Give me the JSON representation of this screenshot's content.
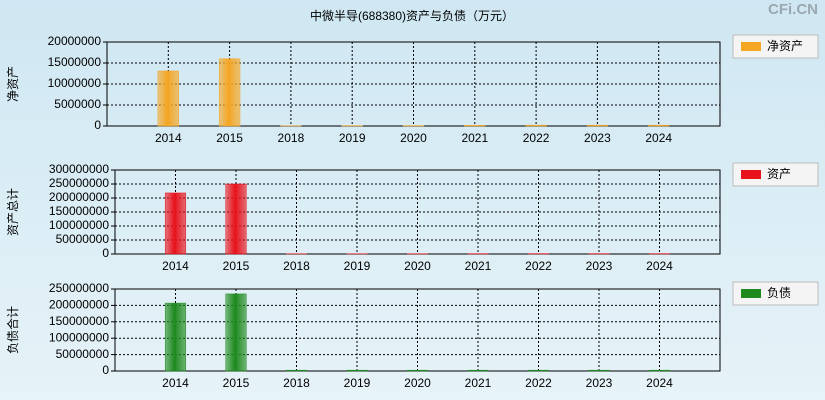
{
  "title": "中微半导(688380)资产与负债（万元）",
  "watermark": "CFi.CN",
  "chart_data": [
    {
      "type": "bar",
      "ylabel": "净资产",
      "categories": [
        "2014",
        "2015",
        "2018",
        "2019",
        "2020",
        "2021",
        "2022",
        "2023",
        "2024"
      ],
      "series": [
        {
          "name": "净资产",
          "color": "#f5a623",
          "values": [
            13100000,
            16000000,
            50000,
            80000,
            90000,
            150000,
            200000,
            200000,
            200000
          ]
        }
      ],
      "ylim": [
        0,
        20000000
      ],
      "yticks": [
        0,
        5000000,
        10000000,
        15000000,
        20000000
      ],
      "grid": true
    },
    {
      "type": "bar",
      "ylabel": "资产总计",
      "categories": [
        "2014",
        "2015",
        "2018",
        "2019",
        "2020",
        "2021",
        "2022",
        "2023",
        "2024"
      ],
      "series": [
        {
          "name": "资产",
          "color": "#e8121b",
          "values": [
            218000000,
            250000000,
            800000,
            900000,
            1000000,
            1200000,
            1300000,
            1300000,
            1300000
          ]
        }
      ],
      "ylim": [
        0,
        300000000
      ],
      "yticks": [
        0,
        50000000,
        100000000,
        150000000,
        200000000,
        250000000,
        300000000
      ],
      "grid": true
    },
    {
      "type": "bar",
      "ylabel": "负债合计",
      "categories": [
        "2014",
        "2015",
        "2018",
        "2019",
        "2020",
        "2021",
        "2022",
        "2023",
        "2024"
      ],
      "series": [
        {
          "name": "负债",
          "color": "#1e8a1e",
          "values": [
            207000000,
            235000000,
            2500000,
            2500000,
            2500000,
            2500000,
            2500000,
            2500000,
            2500000
          ]
        }
      ],
      "ylim": [
        0,
        250000000
      ],
      "yticks": [
        0,
        50000000,
        100000000,
        150000000,
        200000000,
        250000000
      ],
      "grid": true
    }
  ]
}
